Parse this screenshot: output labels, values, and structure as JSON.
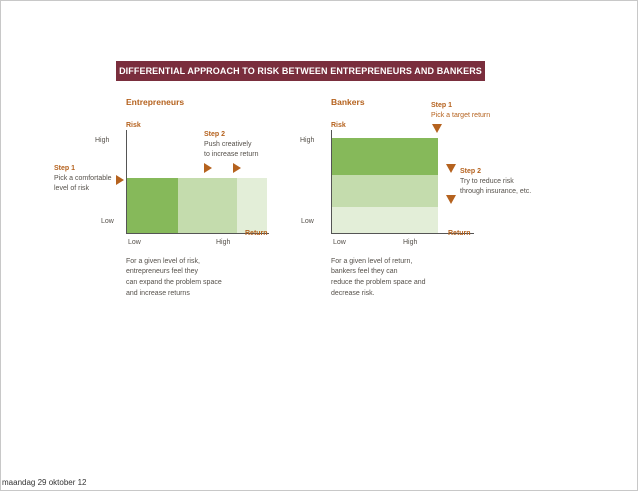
{
  "title": "DIFFERENTIAL APPROACH TO RISK BETWEEN ENTREPRENEURS AND BANKERS",
  "entrepreneurs": {
    "heading": "Entrepreneurs",
    "risk_label": "Risk",
    "return_label": "Return",
    "high": "High",
    "low": "Low",
    "x_low": "Low",
    "x_high": "High",
    "step1_title": "Step 1",
    "step1_line1": "Pick a comfortable",
    "step1_line2": "level of risk",
    "step2_title": "Step 2",
    "step2_line1": "Push creatively",
    "step2_line2": "to increase return",
    "caption_line1": "For a given level of risk,",
    "caption_line2": "entrepreneurs feel they",
    "caption_line3": "can expand the problem space",
    "caption_line4": "and increase returns"
  },
  "bankers": {
    "heading": "Bankers",
    "risk_label": "Risk",
    "return_label": "Return",
    "high": "High",
    "low": "Low",
    "x_low": "Low",
    "x_high": "High",
    "step1_title": "Step 1",
    "step1_line1": "Pick a target return",
    "step2_title": "Step 2",
    "step2_line1": "Try to reduce risk",
    "step2_line2": "through insurance, etc.",
    "caption_line1": "For a given level of return,",
    "caption_line2": "bankers feel they can",
    "caption_line3": "reduce the problem space and",
    "caption_line4": "decrease risk."
  },
  "colors": {
    "banner": "#7a2e3d",
    "accent": "#b5621e",
    "green_dark": "#86b95a",
    "green_mid": "#c4dcad",
    "green_light": "#e3eed8"
  },
  "footer": "maandag 29 oktober 12"
}
